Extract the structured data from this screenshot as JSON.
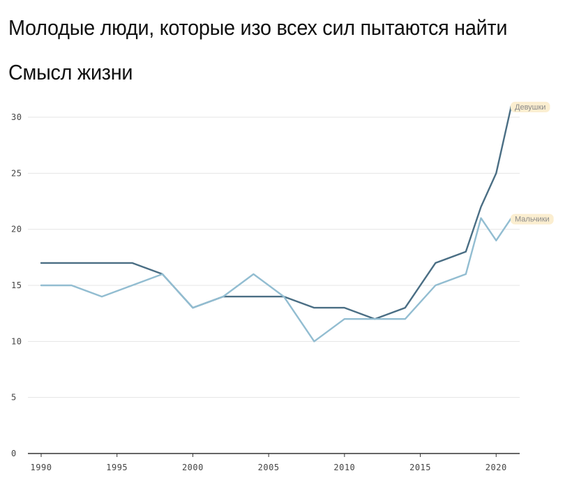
{
  "title": "Молодые люди, которые изо всех сил пытаются найти Смысл жизни",
  "chart_data": {
    "type": "line",
    "title": "Молодые люди, которые изо всех сил пытаются найти Смысл жизни",
    "xlabel": "",
    "ylabel": "",
    "xlim": [
      1990,
      2021
    ],
    "ylim": [
      0,
      31
    ],
    "x_ticks": [
      1990,
      1995,
      2000,
      2005,
      2010,
      2015,
      2020
    ],
    "y_ticks": [
      0,
      5,
      10,
      15,
      20,
      25,
      30
    ],
    "grid": true,
    "series": [
      {
        "name": "Девушки",
        "color": "#4a6e84",
        "label_bg": "#fbeed0",
        "points": [
          [
            1990,
            17
          ],
          [
            1992,
            17
          ],
          [
            1994,
            17
          ],
          [
            1996,
            17
          ],
          [
            1998,
            16
          ],
          [
            2000,
            13
          ],
          [
            2002,
            14
          ],
          [
            2004,
            14
          ],
          [
            2006,
            14
          ],
          [
            2008,
            13
          ],
          [
            2010,
            13
          ],
          [
            2012,
            12
          ],
          [
            2014,
            13
          ],
          [
            2016,
            17
          ],
          [
            2018,
            18
          ],
          [
            2019,
            22
          ],
          [
            2020,
            25
          ],
          [
            2021,
            31
          ]
        ]
      },
      {
        "name": "Мальчики",
        "color": "#92bdd1",
        "label_bg": "#fbeed0",
        "points": [
          [
            1990,
            15
          ],
          [
            1992,
            15
          ],
          [
            1994,
            14
          ],
          [
            1996,
            15
          ],
          [
            1998,
            16
          ],
          [
            2000,
            13
          ],
          [
            2002,
            14
          ],
          [
            2004,
            16
          ],
          [
            2006,
            14
          ],
          [
            2008,
            10
          ],
          [
            2010,
            12
          ],
          [
            2012,
            12
          ],
          [
            2014,
            12
          ],
          [
            2016,
            15
          ],
          [
            2018,
            16
          ],
          [
            2019,
            21
          ],
          [
            2020,
            19
          ],
          [
            2021,
            21
          ]
        ]
      }
    ]
  }
}
